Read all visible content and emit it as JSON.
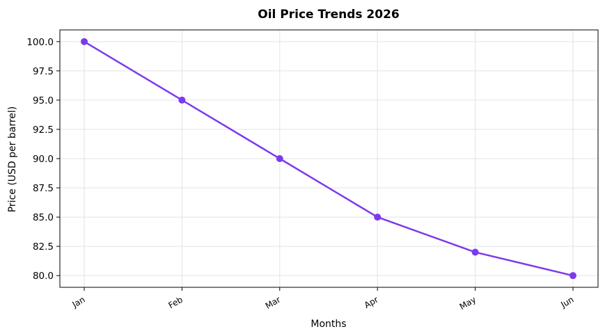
{
  "chart_data": {
    "type": "line",
    "title": "Oil Price Trends 2026",
    "xlabel": "Months",
    "ylabel": "Price (USD per barrel)",
    "categories": [
      "Jan",
      "Feb",
      "Mar",
      "Apr",
      "May",
      "Jun"
    ],
    "series": [
      {
        "values": [
          100.0,
          95.0,
          90.0,
          85.0,
          82.0,
          80.0
        ],
        "color": "#7c3aed"
      }
    ],
    "ylim": [
      79.0,
      101.0
    ],
    "yticks": [
      "80.0",
      "82.5",
      "85.0",
      "87.5",
      "90.0",
      "92.5",
      "95.0",
      "97.5",
      "100.0"
    ],
    "grid": true,
    "legend": "none"
  }
}
